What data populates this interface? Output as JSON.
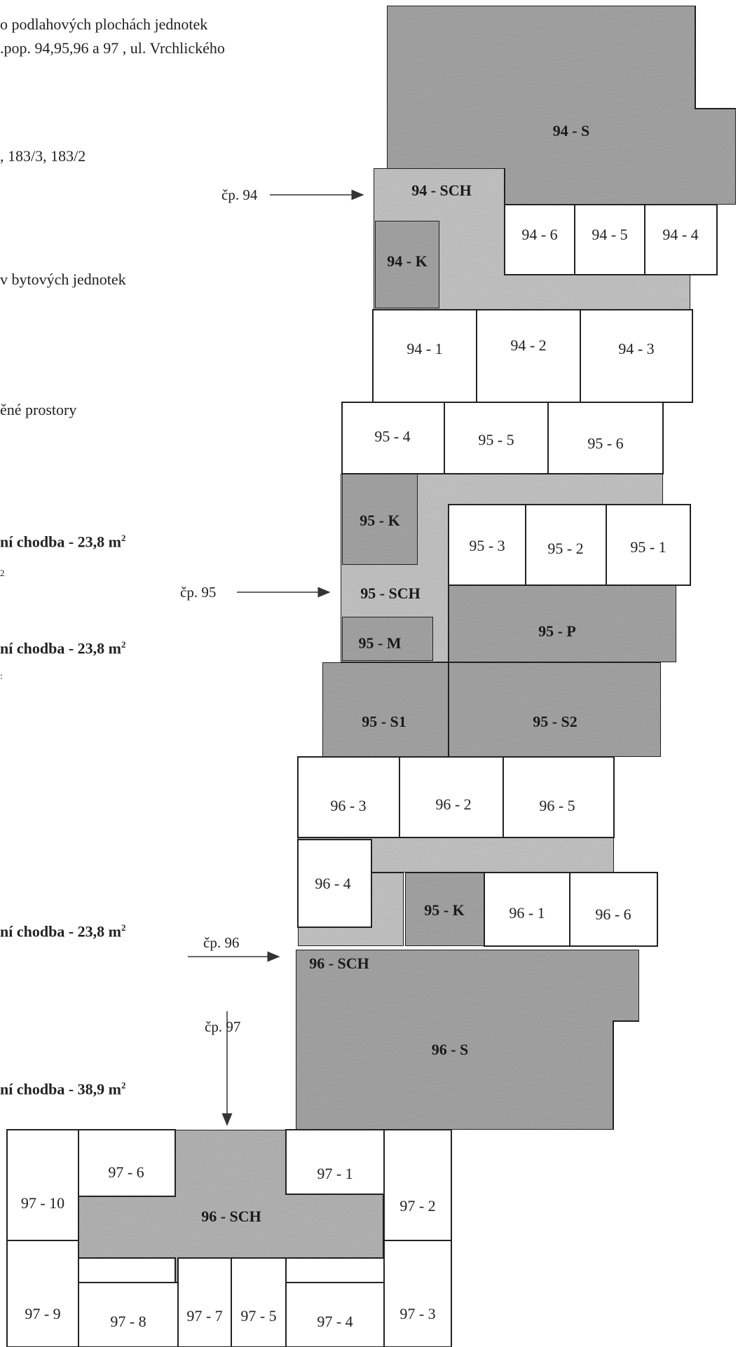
{
  "left_text": {
    "header_line1": "o podlahových plochách jednotek",
    "header_line2": ".pop. 94,95,96 a 97 , ul. Vrchlického",
    "parcels": ", 183/3, 183/2",
    "units_line": "v bytových jednotek",
    "spaces_line": "ěné prostory",
    "corridor_1": "ní chodba - 23,8 m",
    "fragment_1": "2",
    "corridor_2": "ní chodba - 23,8 m",
    "fragment_2": ":",
    "corridor_3": "ní chodba - 23,8 m",
    "corridor_4": "ní chodba - 38,9 m",
    "superscript": "2"
  },
  "arrows": {
    "cp94": "čp. 94",
    "cp95": "čp. 95",
    "cp96": "čp. 96",
    "cp97": "čp. 97"
  },
  "units": {
    "u94_S": "94 - S",
    "u94_SCH": "94 - SCH",
    "u94_K": "94 - K",
    "u94_6": "94 - 6",
    "u94_5": "94 - 5",
    "u94_4": "94 - 4",
    "u94_1": "94 - 1",
    "u94_2": "94 - 2",
    "u94_3": "94 - 3",
    "u95_4": "95 - 4",
    "u95_5": "95 - 5",
    "u95_6": "95 - 6",
    "u95_K": "95 - K",
    "u95_3": "95 - 3",
    "u95_2": "95 - 2",
    "u95_1": "95 - 1",
    "u95_SCH": "95 - SCH",
    "u95_M": "95 - M",
    "u95_P": "95 - P",
    "u95_S1": "95 - S1",
    "u95_S2": "95 - S2",
    "u96_3": "96 - 3",
    "u96_2": "96 - 2",
    "u96_5": "96 - 5",
    "u96_4": "96 - 4",
    "u96_K": "95 - K",
    "u96_1": "96 - 1",
    "u96_6": "96 - 6",
    "u96_SCH": "96 - SCH",
    "u96_S": "96 - S",
    "u97_6": "97 - 6",
    "u97_1": "97 - 1",
    "u97_10": "97 - 10",
    "u97_2": "97 - 2",
    "u97_SCH": "96 - SCH",
    "u97_9": "97 - 9",
    "u97_8": "97 - 8",
    "u97_7": "97 - 7",
    "u97_5": "97 - 5",
    "u97_4": "97 - 4",
    "u97_3": "97 - 3"
  },
  "colors": {
    "shaded_light": "#c9c9c9",
    "shaded_dark": "#a9a9a9",
    "outline": "#222222",
    "paper": "#ffffff"
  }
}
